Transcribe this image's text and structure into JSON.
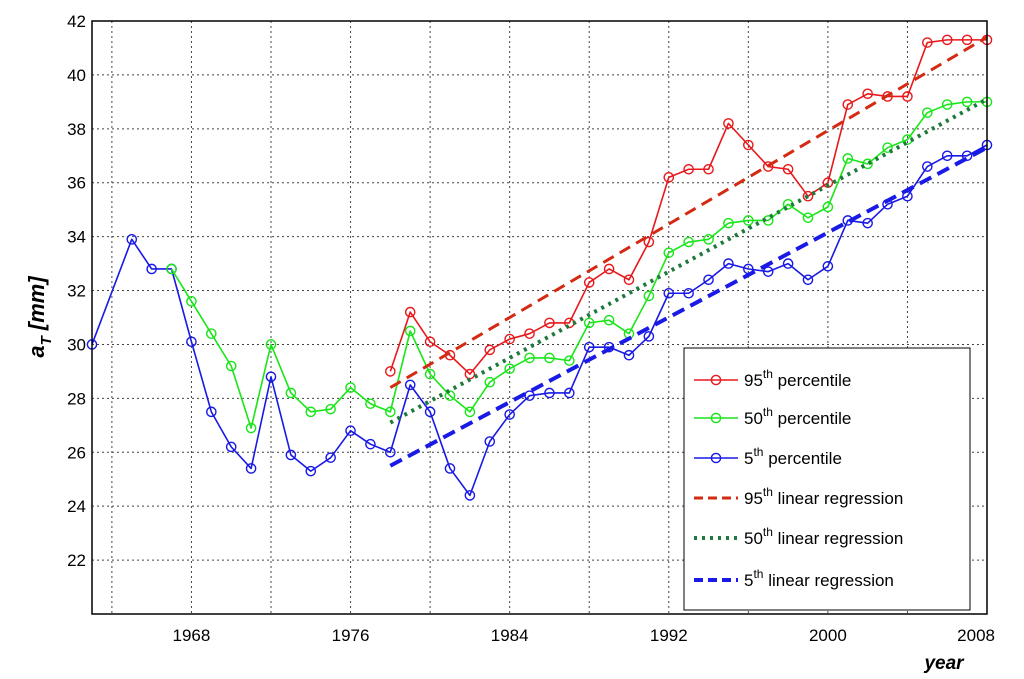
{
  "chart_data": {
    "type": "line",
    "xlabel": "year",
    "ylabel_main": "a",
    "ylabel_sub": "T",
    "ylabel_rest": " [mm]",
    "xlim": [
      1963,
      2008
    ],
    "ylim": [
      20,
      42
    ],
    "x_ticks": [
      1968,
      1976,
      1984,
      1992,
      2000,
      2008
    ],
    "y_ticks": [
      22,
      24,
      26,
      28,
      30,
      32,
      34,
      36,
      38,
      40,
      42
    ],
    "grid": true,
    "legend_position": "bottom-right",
    "colors": {
      "p95": "#e8191c",
      "p50": "#19e619",
      "p5": "#1919e6",
      "reg95": "#d42a12",
      "reg50": "#1e7a3c",
      "reg5": "#1a1ae6",
      "grid": "#444444"
    },
    "series": [
      {
        "key": "p95",
        "name_base": "95",
        "name_sup": "th",
        "name_rest": " percentile",
        "style": "line-marker",
        "x": [
          1978,
          1979,
          1980,
          1981,
          1982,
          1983,
          1984,
          1985,
          1986,
          1987,
          1988,
          1989,
          1990,
          1991,
          1992,
          1993,
          1994,
          1995,
          1996,
          1997,
          1998,
          1999,
          2000,
          2001,
          2002,
          2003,
          2004,
          2005,
          2006,
          2007,
          2008
        ],
        "values": [
          29.0,
          31.2,
          30.1,
          29.6,
          28.9,
          29.8,
          30.2,
          30.4,
          30.8,
          30.8,
          32.3,
          32.8,
          32.4,
          33.8,
          36.2,
          36.5,
          36.5,
          38.2,
          37.4,
          36.6,
          36.5,
          35.5,
          36.0,
          38.9,
          39.3,
          39.2,
          39.2,
          41.2,
          41.3,
          41.3,
          41.3
        ]
      },
      {
        "key": "p50",
        "name_base": "50",
        "name_sup": "th",
        "name_rest": " percentile",
        "style": "line-marker",
        "x": [
          1967,
          1968,
          1969,
          1970,
          1971,
          1972,
          1973,
          1974,
          1975,
          1976,
          1977,
          1978,
          1979,
          1980,
          1981,
          1982,
          1983,
          1984,
          1985,
          1986,
          1987,
          1988,
          1989,
          1990,
          1991,
          1992,
          1993,
          1994,
          1995,
          1996,
          1997,
          1998,
          1999,
          2000,
          2001,
          2002,
          2003,
          2004,
          2005,
          2006,
          2007,
          2008
        ],
        "values": [
          32.8,
          31.6,
          30.4,
          29.2,
          26.9,
          30.0,
          28.2,
          27.5,
          27.6,
          28.4,
          27.8,
          27.5,
          30.5,
          28.9,
          28.1,
          27.5,
          28.6,
          29.1,
          29.5,
          29.5,
          29.4,
          30.8,
          30.9,
          30.4,
          31.8,
          33.4,
          33.8,
          33.9,
          34.5,
          34.6,
          34.6,
          35.2,
          34.7,
          35.1,
          36.9,
          36.7,
          37.3,
          37.6,
          38.6,
          38.9,
          39.0,
          39.0
        ]
      },
      {
        "key": "p5",
        "name_base": "5",
        "name_sup": "th",
        "name_rest": " percentile",
        "style": "line-marker",
        "x": [
          1963,
          1965,
          1966,
          1967,
          1968,
          1969,
          1970,
          1971,
          1972,
          1973,
          1974,
          1975,
          1976,
          1977,
          1978,
          1979,
          1980,
          1981,
          1982,
          1983,
          1984,
          1985,
          1986,
          1987,
          1988,
          1989,
          1990,
          1991,
          1992,
          1993,
          1994,
          1995,
          1996,
          1997,
          1998,
          1999,
          2000,
          2001,
          2002,
          2003,
          2004,
          2005,
          2006,
          2007,
          2008
        ],
        "values": [
          30.0,
          33.9,
          32.8,
          32.8,
          30.1,
          27.5,
          26.2,
          25.4,
          28.8,
          25.9,
          25.3,
          25.8,
          26.8,
          26.3,
          26.0,
          28.5,
          27.5,
          25.4,
          24.4,
          26.4,
          27.4,
          28.1,
          28.2,
          28.2,
          29.9,
          29.9,
          29.6,
          30.3,
          31.9,
          31.9,
          32.4,
          33.0,
          32.8,
          32.7,
          33.0,
          32.4,
          32.9,
          34.6,
          34.5,
          35.2,
          35.5,
          36.6,
          37.0,
          37.0,
          37.4
        ]
      },
      {
        "key": "reg95",
        "name_base": "95",
        "name_sup": "th",
        "name_rest": " linear regression",
        "style": "dashed",
        "x": [
          1978,
          2008
        ],
        "values": [
          28.4,
          41.4
        ]
      },
      {
        "key": "reg50",
        "name_base": "50",
        "name_sup": "th",
        "name_rest": " linear regression",
        "style": "dotted",
        "x": [
          1978,
          2008
        ],
        "values": [
          27.1,
          39.1
        ]
      },
      {
        "key": "reg5",
        "name_base": "5",
        "name_sup": "th",
        "name_rest": " linear regression",
        "style": "dashed-bold",
        "x": [
          1978,
          2008
        ],
        "values": [
          25.5,
          37.3
        ]
      }
    ]
  }
}
